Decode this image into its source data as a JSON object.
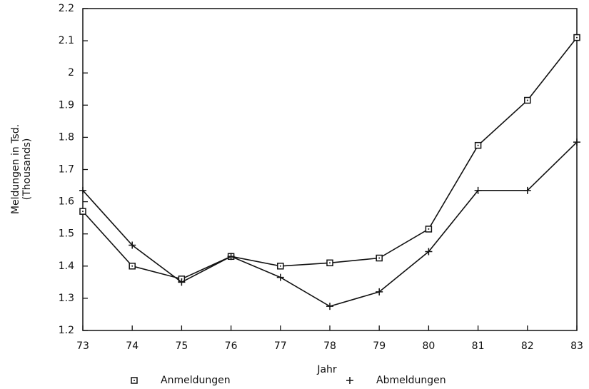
{
  "chart_data": {
    "type": "line",
    "y_label": [
      "Meldungen in Tsd.",
      "(Thousands)"
    ],
    "x_label": "Jahr",
    "categories": [
      "73",
      "74",
      "75",
      "76",
      "77",
      "78",
      "79",
      "80",
      "81",
      "82",
      "83"
    ],
    "series": [
      {
        "name": "Anmeldungen",
        "color": "#111111",
        "marker": "square",
        "values": [
          1.57,
          1.4,
          1.36,
          1.43,
          1.4,
          1.41,
          1.425,
          1.515,
          1.775,
          1.915,
          2.11
        ]
      },
      {
        "name": "Abmeldungen",
        "color": "#111111",
        "marker": "plus",
        "values": [
          1.635,
          1.465,
          1.35,
          1.43,
          1.365,
          1.275,
          1.32,
          1.445,
          1.635,
          1.635,
          1.785
        ]
      }
    ],
    "ylim": [
      1.2,
      2.2
    ],
    "yticks": [
      1.2,
      1.3,
      1.4,
      1.5,
      1.6,
      1.7,
      1.8,
      1.9,
      2,
      2.1,
      2.2
    ],
    "grid": false,
    "legend": "bottom"
  }
}
